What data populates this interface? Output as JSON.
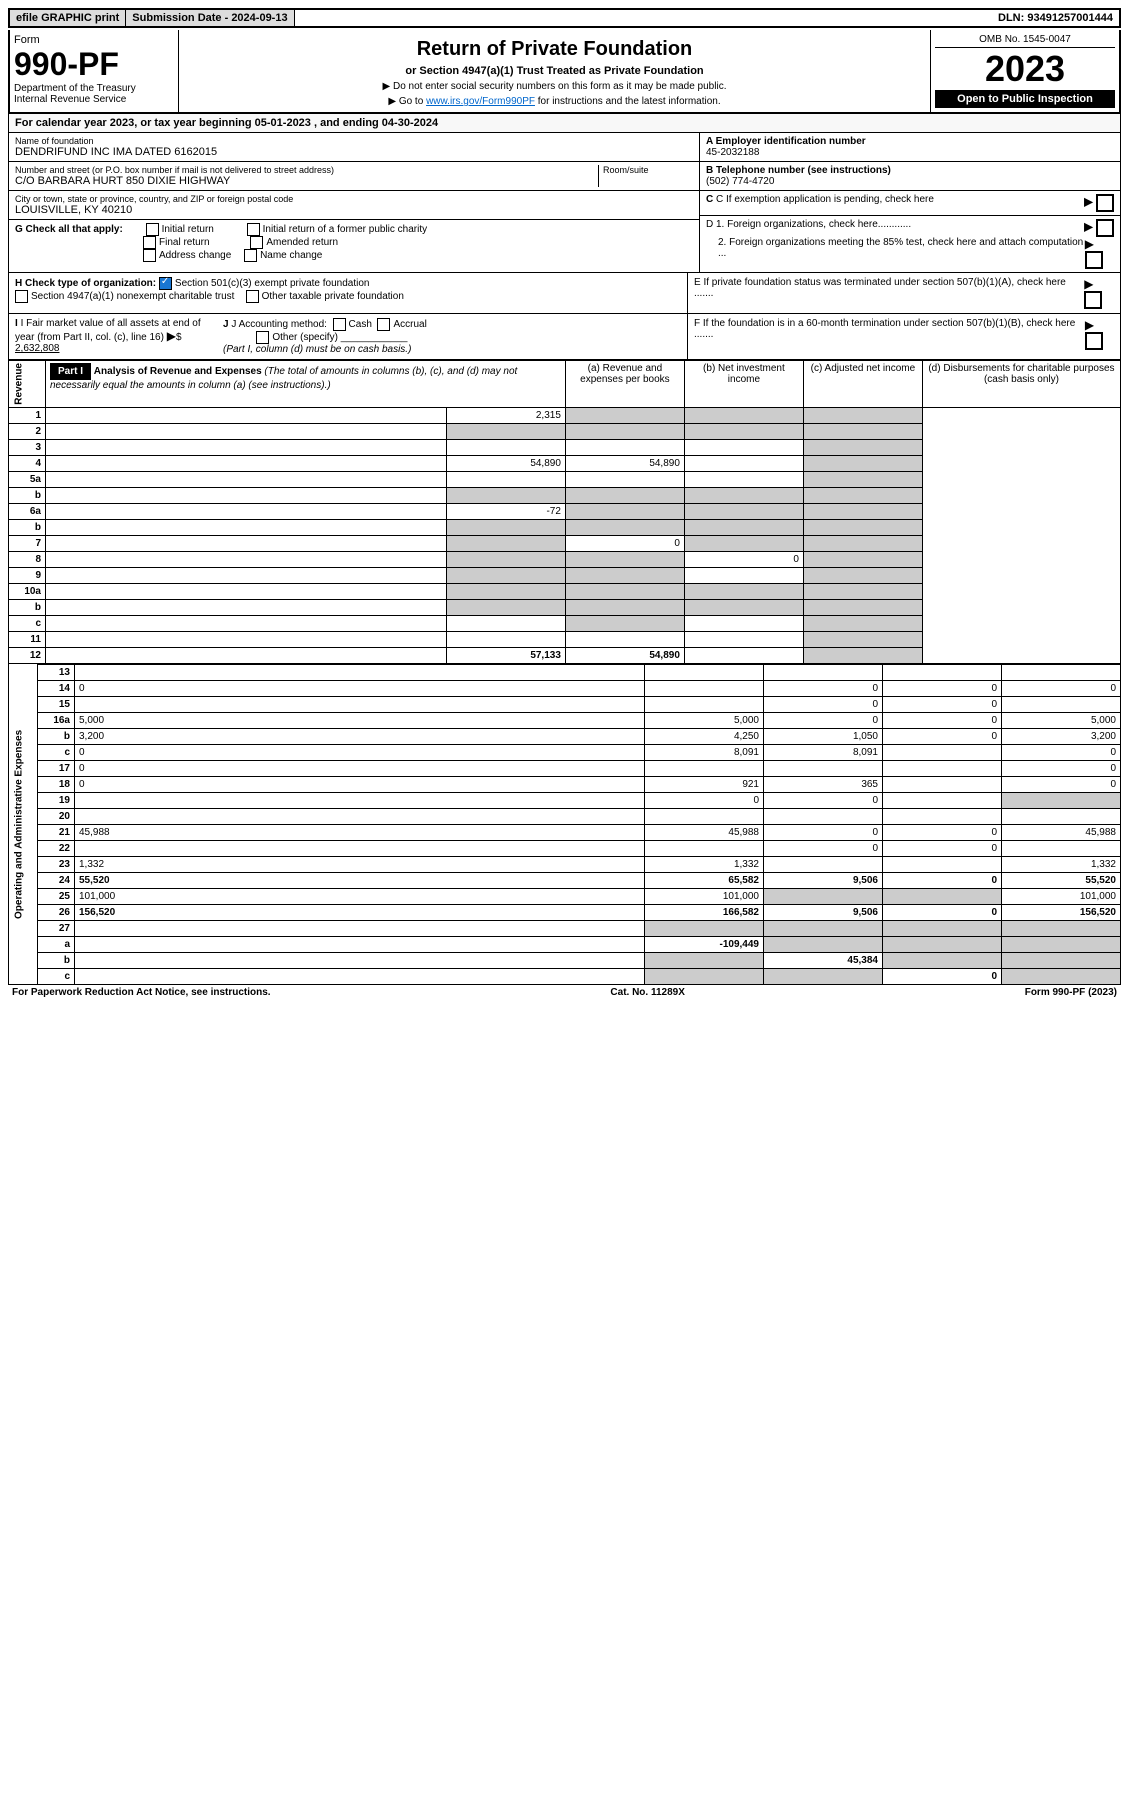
{
  "topbar": {
    "efile": "efile GRAPHIC print",
    "submission": "Submission Date - 2024-09-13",
    "dln": "DLN: 93491257001444"
  },
  "header": {
    "form_label": "Form",
    "form_num": "990-PF",
    "dept": "Department of the Treasury",
    "irs": "Internal Revenue Service",
    "title": "Return of Private Foundation",
    "subtitle": "or Section 4947(a)(1) Trust Treated as Private Foundation",
    "note1": "▶ Do not enter social security numbers on this form as it may be made public.",
    "note2_pre": "▶ Go to ",
    "note2_link": "www.irs.gov/Form990PF",
    "note2_post": " for instructions and the latest information.",
    "omb": "OMB No. 1545-0047",
    "year": "2023",
    "open": "Open to Public Inspection"
  },
  "calyear": "For calendar year 2023, or tax year beginning 05-01-2023                 , and ending 04-30-2024",
  "info": {
    "name_lbl": "Name of foundation",
    "name": "DENDRIFUND INC IMA DATED 6162015",
    "addr_lbl": "Number and street (or P.O. box number if mail is not delivered to street address)",
    "room_lbl": "Room/suite",
    "addr": "C/O BARBARA HURT 850 DIXIE HIGHWAY",
    "city_lbl": "City or town, state or province, country, and ZIP or foreign postal code",
    "city": "LOUISVILLE, KY  40210",
    "ein_lbl": "A Employer identification number",
    "ein": "45-2032188",
    "phone_lbl": "B Telephone number (see instructions)",
    "phone": "(502) 774-4720",
    "c": "C If exemption application is pending, check here",
    "d1": "D 1. Foreign organizations, check here............",
    "d2": "2. Foreign organizations meeting the 85% test, check here and attach computation ...",
    "e": "E  If private foundation status was terminated under section 507(b)(1)(A), check here .......",
    "f": "F  If the foundation is in a 60-month termination under section 507(b)(1)(B), check here ......."
  },
  "g": {
    "label": "G Check all that apply:",
    "opts": [
      "Initial return",
      "Final return",
      "Address change",
      "Initial return of a former public charity",
      "Amended return",
      "Name change"
    ]
  },
  "h": {
    "label": "H Check type of organization:",
    "o1": "Section 501(c)(3) exempt private foundation",
    "o2": "Section 4947(a)(1) nonexempt charitable trust",
    "o3": "Other taxable private foundation"
  },
  "i": {
    "label": "I Fair market value of all assets at end of year (from Part II, col. (c), line 16)",
    "val": "2,632,808"
  },
  "j": {
    "label": "J Accounting method:",
    "cash": "Cash",
    "accrual": "Accrual",
    "other": "Other (specify)",
    "note": "(Part I, column (d) must be on cash basis.)"
  },
  "part1": {
    "label": "Part I",
    "title": "Analysis of Revenue and Expenses",
    "desc": "(The total of amounts in columns (b), (c), and (d) may not necessarily equal the amounts in column (a) (see instructions).)",
    "col_a": "(a)  Revenue and expenses per books",
    "col_b": "(b)  Net investment income",
    "col_c": "(c)  Adjusted net income",
    "col_d": "(d)  Disbursements for charitable purposes (cash basis only)"
  },
  "sections": {
    "revenue": "Revenue",
    "expenses": "Operating and Administrative Expenses"
  },
  "rows": [
    {
      "n": "1",
      "d": "",
      "a": "2,315",
      "b": "",
      "c": "",
      "shade_b": true,
      "shade_c": true,
      "shade_d": true
    },
    {
      "n": "2",
      "d": "",
      "a": "",
      "b": "",
      "c": "",
      "shade_a": true,
      "shade_b": true,
      "shade_c": true,
      "shade_d": true
    },
    {
      "n": "3",
      "d": "",
      "a": "",
      "b": "",
      "c": "",
      "shade_d": true
    },
    {
      "n": "4",
      "d": "",
      "a": "54,890",
      "b": "54,890",
      "c": "",
      "shade_d": true
    },
    {
      "n": "5a",
      "d": "",
      "a": "",
      "b": "",
      "c": "",
      "shade_d": true
    },
    {
      "n": "b",
      "d": "",
      "a": "",
      "b": "",
      "c": "",
      "shade_a": true,
      "shade_b": true,
      "shade_c": true,
      "shade_d": true
    },
    {
      "n": "6a",
      "d": "",
      "a": "-72",
      "b": "",
      "c": "",
      "shade_b": true,
      "shade_c": true,
      "shade_d": true
    },
    {
      "n": "b",
      "d": "",
      "a": "",
      "b": "",
      "c": "",
      "shade_a": true,
      "shade_b": true,
      "shade_c": true,
      "shade_d": true
    },
    {
      "n": "7",
      "d": "",
      "a": "",
      "b": "0",
      "c": "",
      "shade_a": true,
      "shade_c": true,
      "shade_d": true
    },
    {
      "n": "8",
      "d": "",
      "a": "",
      "b": "",
      "c": "0",
      "shade_a": true,
      "shade_b": true,
      "shade_d": true
    },
    {
      "n": "9",
      "d": "",
      "a": "",
      "b": "",
      "c": "",
      "shade_a": true,
      "shade_b": true,
      "shade_d": true
    },
    {
      "n": "10a",
      "d": "",
      "a": "",
      "b": "",
      "c": "",
      "shade_a": true,
      "shade_b": true,
      "shade_c": true,
      "shade_d": true
    },
    {
      "n": "b",
      "d": "",
      "a": "",
      "b": "",
      "c": "",
      "shade_a": true,
      "shade_b": true,
      "shade_c": true,
      "shade_d": true
    },
    {
      "n": "c",
      "d": "",
      "a": "",
      "b": "",
      "c": "",
      "shade_b": true,
      "shade_d": true
    },
    {
      "n": "11",
      "d": "",
      "a": "",
      "b": "",
      "c": "",
      "shade_d": true
    },
    {
      "n": "12",
      "d": "",
      "a": "57,133",
      "b": "54,890",
      "c": "",
      "bold": true,
      "shade_d": true
    },
    {
      "n": "13",
      "d": "",
      "a": "",
      "b": "",
      "c": "",
      "sec": "exp"
    },
    {
      "n": "14",
      "d": "0",
      "a": "",
      "b": "0",
      "c": "0",
      "sec": "exp"
    },
    {
      "n": "15",
      "d": "",
      "a": "",
      "b": "0",
      "c": "0",
      "sec": "exp"
    },
    {
      "n": "16a",
      "d": "5,000",
      "a": "5,000",
      "b": "0",
      "c": "0",
      "sec": "exp"
    },
    {
      "n": "b",
      "d": "3,200",
      "a": "4,250",
      "b": "1,050",
      "c": "0",
      "sec": "exp"
    },
    {
      "n": "c",
      "d": "0",
      "a": "8,091",
      "b": "8,091",
      "c": "",
      "sec": "exp"
    },
    {
      "n": "17",
      "d": "0",
      "a": "",
      "b": "",
      "c": "",
      "sec": "exp"
    },
    {
      "n": "18",
      "d": "0",
      "a": "921",
      "b": "365",
      "c": "",
      "sec": "exp"
    },
    {
      "n": "19",
      "d": "",
      "a": "0",
      "b": "0",
      "c": "",
      "sec": "exp",
      "shade_d": true
    },
    {
      "n": "20",
      "d": "",
      "a": "",
      "b": "",
      "c": "",
      "sec": "exp"
    },
    {
      "n": "21",
      "d": "45,988",
      "a": "45,988",
      "b": "0",
      "c": "0",
      "sec": "exp"
    },
    {
      "n": "22",
      "d": "",
      "a": "",
      "b": "0",
      "c": "0",
      "sec": "exp"
    },
    {
      "n": "23",
      "d": "1,332",
      "a": "1,332",
      "b": "",
      "c": "",
      "sec": "exp"
    },
    {
      "n": "24",
      "d": "55,520",
      "a": "65,582",
      "b": "9,506",
      "c": "0",
      "bold": true,
      "sec": "exp"
    },
    {
      "n": "25",
      "d": "101,000",
      "a": "101,000",
      "b": "",
      "c": "",
      "sec": "exp",
      "shade_b": true,
      "shade_c": true
    },
    {
      "n": "26",
      "d": "156,520",
      "a": "166,582",
      "b": "9,506",
      "c": "0",
      "bold": true,
      "sec": "exp"
    },
    {
      "n": "27",
      "d": "",
      "a": "",
      "b": "",
      "c": "",
      "sec": "exp",
      "shade_a": true,
      "shade_b": true,
      "shade_c": true,
      "shade_d": true
    },
    {
      "n": "a",
      "d": "",
      "a": "-109,449",
      "b": "",
      "c": "",
      "bold": true,
      "sec": "exp",
      "shade_b": true,
      "shade_c": true,
      "shade_d": true
    },
    {
      "n": "b",
      "d": "",
      "a": "",
      "b": "45,384",
      "c": "",
      "bold": true,
      "sec": "exp",
      "shade_a": true,
      "shade_c": true,
      "shade_d": true
    },
    {
      "n": "c",
      "d": "",
      "a": "",
      "b": "",
      "c": "0",
      "bold": true,
      "sec": "exp",
      "shade_a": true,
      "shade_b": true,
      "shade_d": true
    }
  ],
  "footer": {
    "left": "For Paperwork Reduction Act Notice, see instructions.",
    "mid": "Cat. No. 11289X",
    "right": "Form 990-PF (2023)"
  }
}
